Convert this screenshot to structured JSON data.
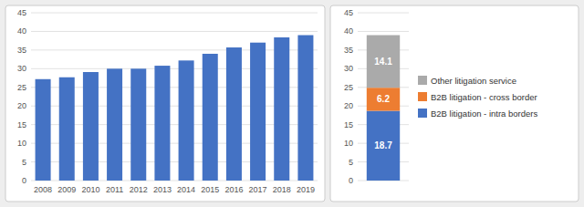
{
  "chart_data": [
    {
      "type": "bar",
      "categories": [
        "2008",
        "2009",
        "2010",
        "2011",
        "2012",
        "2013",
        "2014",
        "2015",
        "2016",
        "2017",
        "2018",
        "2019"
      ],
      "values": [
        27.2,
        27.7,
        29.1,
        30.0,
        30.0,
        30.8,
        32.2,
        34.0,
        35.7,
        37.0,
        38.4,
        39.0
      ],
      "color": "#4472C4",
      "ylim": [
        0,
        45
      ],
      "yticks": [
        0,
        5,
        10,
        15,
        20,
        25,
        30,
        35,
        40,
        45
      ],
      "grid": true
    },
    {
      "type": "bar",
      "categories": [
        null
      ],
      "series": [
        {
          "name": "B2B litigation - intra borders",
          "color": "#4472C4",
          "values": [
            18.7
          ]
        },
        {
          "name": "B2B litigation - cross border",
          "color": "#ED7D31",
          "values": [
            6.2
          ]
        },
        {
          "name": "Other litigation service",
          "color": "#AAAAAA",
          "values": [
            14.1
          ]
        }
      ],
      "stacked": true,
      "data_labels": true,
      "legend": "right",
      "tick_labels": "y",
      "ylim": [
        0,
        45
      ],
      "yticks": [
        0,
        5,
        10,
        15,
        20,
        25,
        30,
        35,
        40,
        45
      ],
      "grid": true
    }
  ]
}
